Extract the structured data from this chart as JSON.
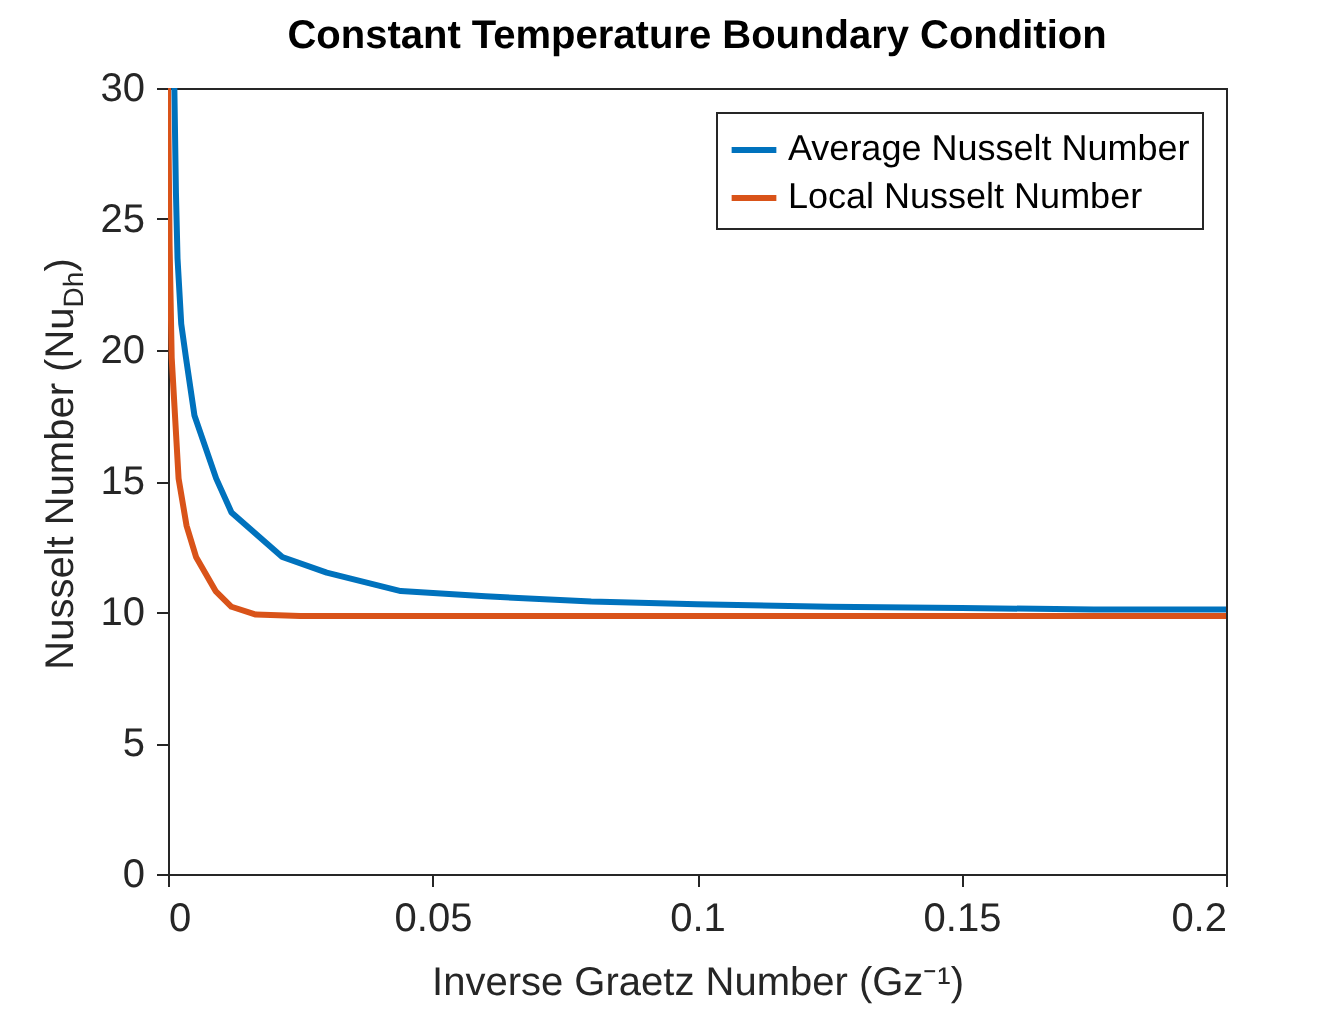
{
  "chart_data": {
    "type": "line",
    "title": "Constant Temperature Boundary Condition",
    "xlabel": "Inverse Graetz Number (Gz⁻¹)",
    "ylabel": "Nusselt Number (Nu$_{Dh}$)",
    "xlim": [
      0,
      0.2
    ],
    "xticks": [
      0,
      0.05,
      0.1,
      0.15,
      0.2
    ],
    "ylim": [
      0,
      30
    ],
    "yticks": [
      0,
      5,
      10,
      15,
      20,
      25,
      30
    ],
    "grid": false,
    "legend": "top right",
    "line_style": "solid",
    "marker": "none",
    "series": [
      {
        "name": "Average Nusselt Number",
        "color": "#0072bd",
        "x": [
          0.0012,
          0.0015,
          0.0018,
          0.0025,
          0.0034,
          0.005,
          0.0091,
          0.012,
          0.0216,
          0.03,
          0.044,
          0.06,
          0.08,
          0.1,
          0.125,
          0.15,
          0.175,
          0.2
        ],
        "values": [
          30,
          26,
          23.5,
          21,
          19.7,
          17.5,
          15.1,
          13.8,
          12.1,
          11.5,
          10.8,
          10.6,
          10.4,
          10.3,
          10.2,
          10.15,
          10.1,
          10.1
        ]
      },
      {
        "name": "Local Nusselt Number",
        "color": "#d95319",
        "x": [
          0,
          0.0003,
          0.0007,
          0.002,
          0.0035,
          0.0053,
          0.009,
          0.012,
          0.0166,
          0.025,
          0.2
        ],
        "values": [
          30,
          24,
          19.7,
          15.1,
          13.3,
          12.1,
          10.8,
          10.2,
          9.9,
          9.85,
          9.85
        ]
      }
    ]
  }
}
